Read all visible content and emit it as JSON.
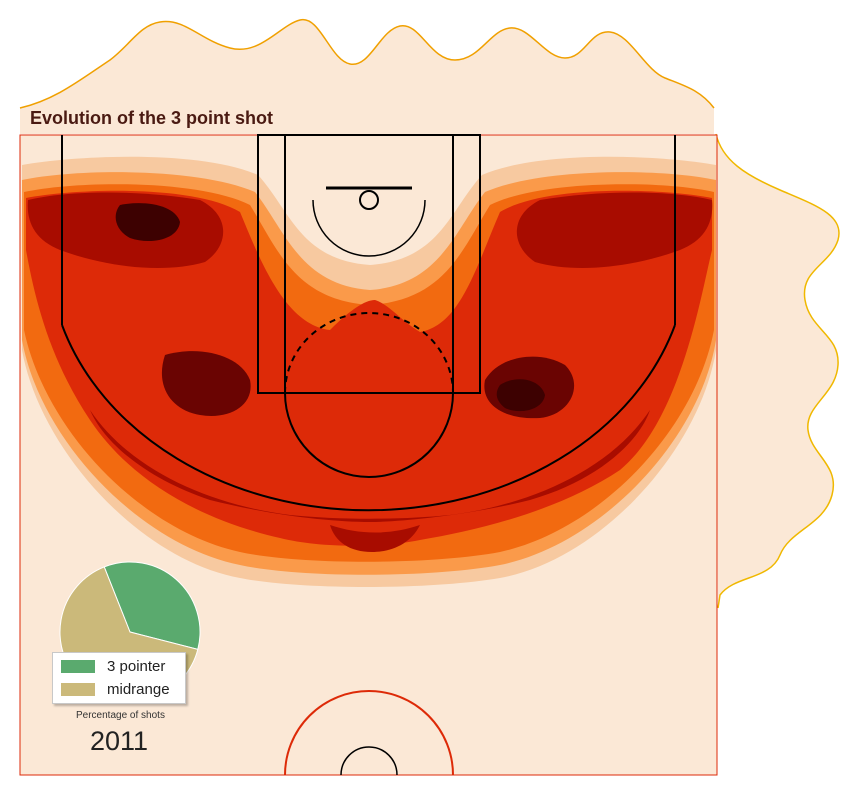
{
  "chart_data": [
    {
      "type": "heatmap",
      "title": "Evolution of the 3 point shot",
      "description_level_count": 6,
      "colors": {
        "background": "#fbe8d6",
        "levels": [
          "#f7c9a0",
          "#fa9a4a",
          "#f26a10",
          "#dd2a08",
          "#a80c00",
          "#6a0402",
          "#3d0101"
        ],
        "marginal_fill": "#fbe8d6",
        "marginal_top_stroke": "#f0a000",
        "marginal_right_stroke": "#f0b800",
        "court_border": "#dd2a08",
        "court_lines": "#000000"
      }
    },
    {
      "type": "pie",
      "caption": "Percentage of shots",
      "year": "2011",
      "slices": [
        {
          "name": "3 pointer",
          "value": 35,
          "color": "#5aaa6e"
        },
        {
          "name": "midrange",
          "value": 65,
          "color": "#cbb97a"
        }
      ]
    }
  ]
}
